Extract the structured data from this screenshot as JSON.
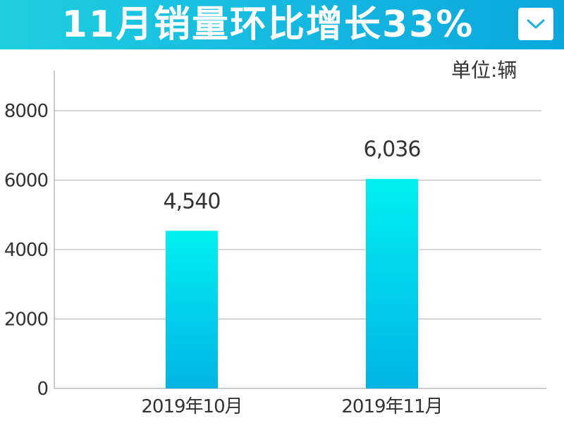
{
  "header": {
    "title": "11月销量环比增长33%",
    "dropdown_icon": "chevron-down-icon"
  },
  "unit_label": "单位:辆",
  "colors": {
    "header_bg": "#14b5e0",
    "bar_top": "#00f0f0",
    "bar_bottom": "#00b4e6",
    "grid": "#b0b0b0",
    "axis": "#999999"
  },
  "chart_data": {
    "type": "bar",
    "categories": [
      "2019年10月",
      "2019年11月"
    ],
    "values": [
      4540,
      6036
    ],
    "value_labels": [
      "4,540",
      "6,036"
    ],
    "y_ticks": [
      0,
      2000,
      4000,
      6000,
      8000
    ],
    "y_tick_labels": [
      "0",
      "2000",
      "4000",
      "6000",
      "8000"
    ],
    "ylim": [
      0,
      8000
    ],
    "grid": true,
    "title": "11月销量环比增长33%",
    "ylabel": "单位:辆"
  }
}
